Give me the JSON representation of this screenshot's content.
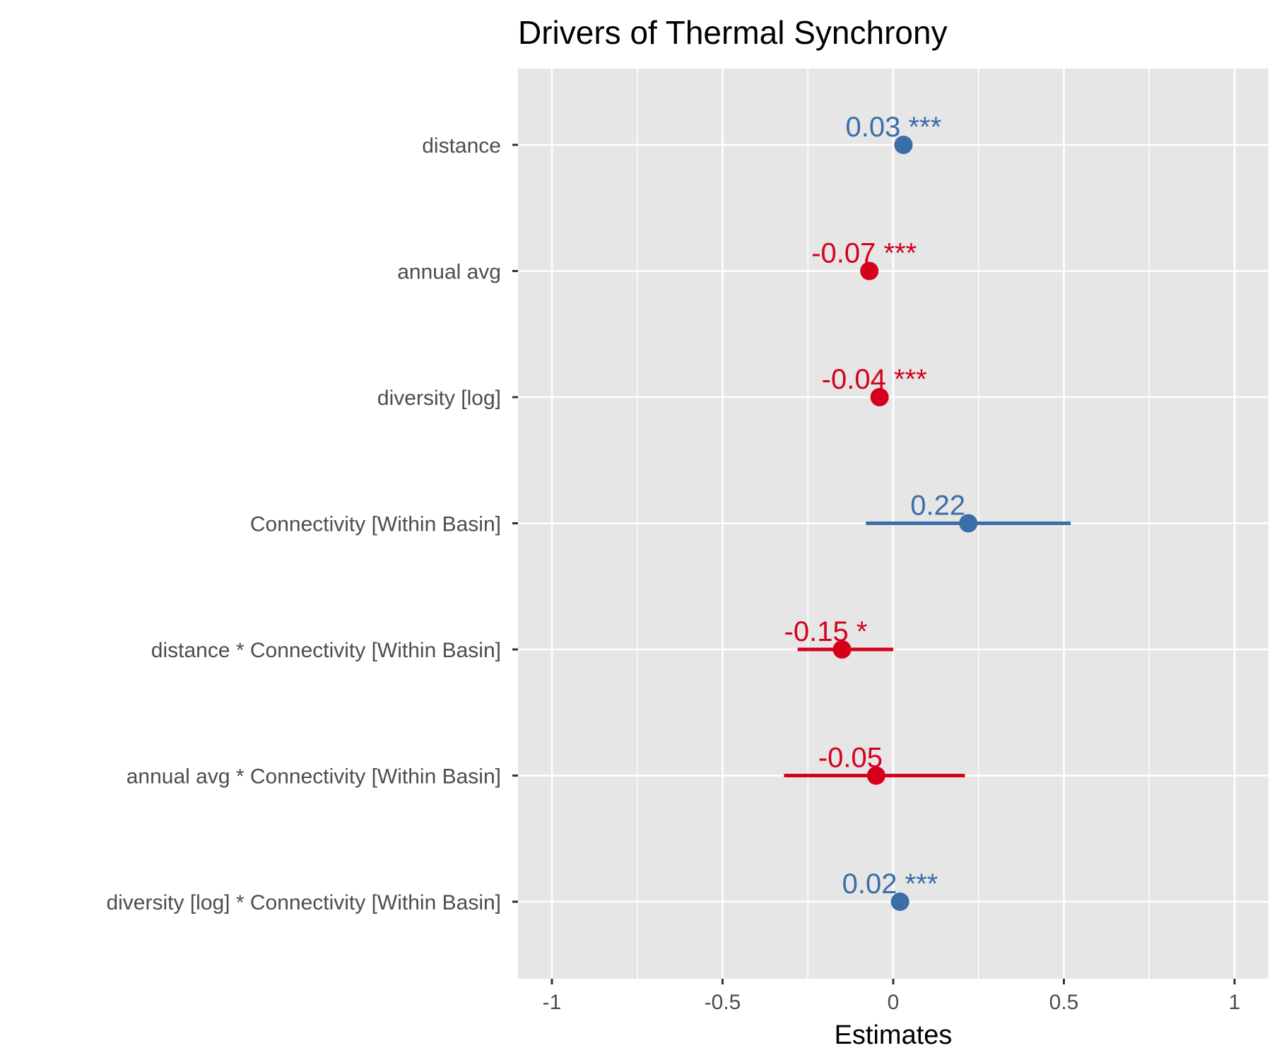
{
  "chart_data": {
    "type": "forest",
    "title": "Drivers of Thermal Synchrony",
    "xlabel": "Estimates",
    "xlim": [
      -1.1,
      1.1
    ],
    "xticks": [
      {
        "value": -1,
        "label": "-1"
      },
      {
        "value": -0.5,
        "label": "-0.5"
      },
      {
        "value": 0,
        "label": "0"
      },
      {
        "value": 0.5,
        "label": "0.5"
      },
      {
        "value": 1,
        "label": "1"
      }
    ],
    "grid": true,
    "colors": {
      "positive": "#3a6ea8",
      "negative": "#d6001c",
      "panel": "#e6e6e6",
      "grid": "#ffffff"
    },
    "terms": [
      {
        "term": "distance",
        "estimate": 0.03,
        "ci_low": 0.02,
        "ci_high": 0.04,
        "label": "0.03 ***"
      },
      {
        "term": "annual avg",
        "estimate": -0.07,
        "ci_low": -0.08,
        "ci_high": -0.06,
        "label": "-0.07 ***"
      },
      {
        "term": "diversity [log]",
        "estimate": -0.04,
        "ci_low": -0.05,
        "ci_high": -0.03,
        "label": "-0.04 ***"
      },
      {
        "term": "Connectivity [Within Basin]",
        "estimate": 0.22,
        "ci_low": -0.08,
        "ci_high": 0.52,
        "label": "0.22"
      },
      {
        "term": "distance * Connectivity [Within Basin]",
        "estimate": -0.15,
        "ci_low": -0.28,
        "ci_high": 0.0,
        "label": "-0.15 *"
      },
      {
        "term": "annual avg * Connectivity [Within Basin]",
        "estimate": -0.05,
        "ci_low": -0.32,
        "ci_high": 0.21,
        "label": "-0.05"
      },
      {
        "term": "diversity [log] * Connectivity [Within Basin]",
        "estimate": 0.02,
        "ci_low": 0.01,
        "ci_high": 0.03,
        "label": "0.02 ***"
      }
    ]
  }
}
